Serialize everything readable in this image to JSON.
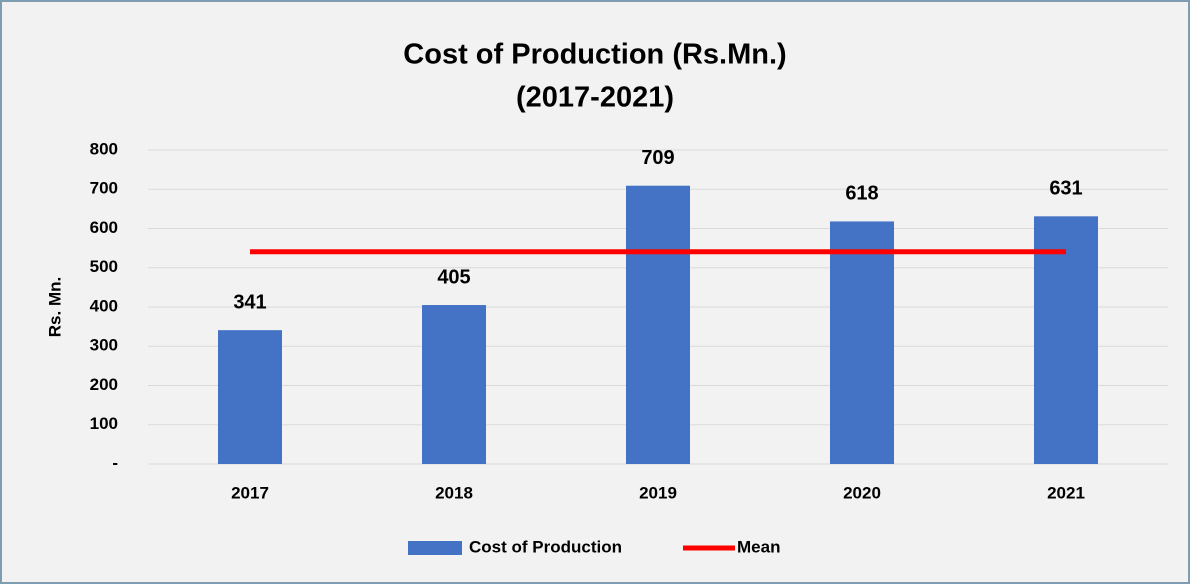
{
  "chart_data": {
    "type": "bar",
    "title": "Cost of Production (Rs.Mn.)",
    "subtitle": "(2017-2021)",
    "y_label": "Rs. Mn.",
    "categories": [
      "2017",
      "2018",
      "2019",
      "2020",
      "2021"
    ],
    "series": [
      {
        "name": "Cost of Production",
        "type": "bar",
        "color": "#4472c4",
        "values": [
          341,
          405,
          709,
          618,
          631
        ]
      },
      {
        "name": "Mean",
        "type": "line",
        "color": "#ff0000",
        "values": [
          540.8,
          540.8,
          540.8,
          540.8,
          540.8
        ]
      }
    ],
    "ylim": [
      0,
      800
    ],
    "yticks": [
      {
        "value": 0,
        "label": "-"
      },
      100,
      200,
      300,
      400,
      500,
      600,
      700,
      800
    ],
    "grid": true,
    "legend": "bottom"
  }
}
